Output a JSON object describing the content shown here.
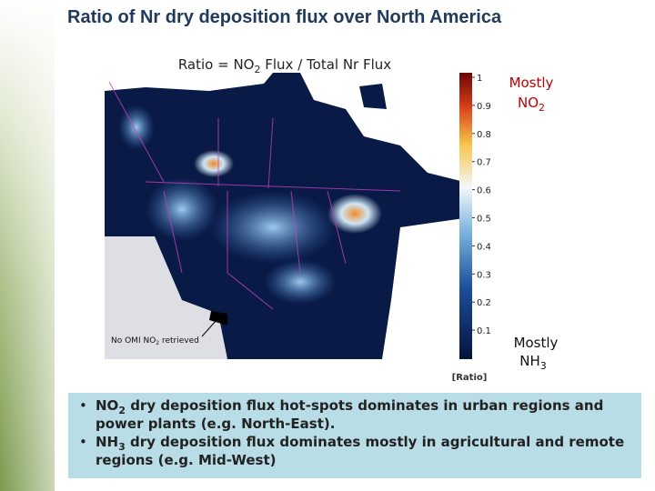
{
  "header": {
    "title": "Ratio of Nr dry deposition flux over North America"
  },
  "map": {
    "title": [
      "Ratio = NO",
      "2",
      " Flux / Total Nr Flux"
    ],
    "note": [
      "No OMI NO",
      "2",
      " retrieved"
    ]
  },
  "colorbar": {
    "ticks": [
      0.1,
      0.2,
      0.3,
      0.4,
      0.5,
      0.6,
      0.7,
      0.8,
      0.9,
      1
    ],
    "unit": "[Ratio]",
    "top_label": [
      "Mostly",
      "NO",
      "2"
    ],
    "bottom_label": [
      "Mostly",
      "NH",
      "3"
    ]
  },
  "bullets": [
    [
      "NO",
      "2",
      " dry deposition flux hot-spots dominates in urban regions and power plants (e.g. North-East)."
    ],
    [
      "NH",
      "3",
      " dry deposition flux dominates mostly in agricultural and remote regions (e.g. Mid-West)"
    ]
  ]
}
